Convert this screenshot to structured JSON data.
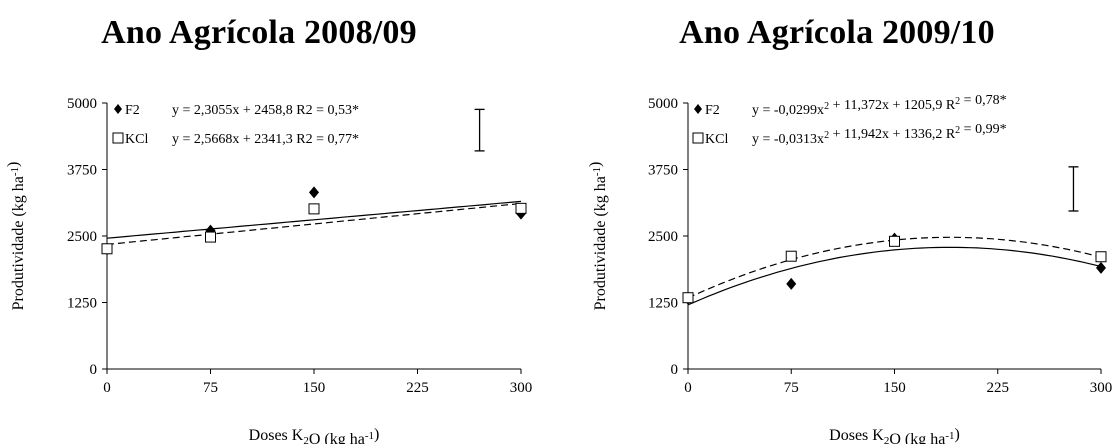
{
  "chart_data": [
    {
      "type": "scatter",
      "title": "Ano Agrícola 2008/09",
      "xlabel": "Doses K₂O (kg ha⁻¹)",
      "ylabel": "Produtividade (kg ha⁻¹)",
      "xlim": [
        0,
        300
      ],
      "ylim": [
        0,
        5000
      ],
      "xticks": [
        "0",
        "75",
        "150",
        "225",
        "300"
      ],
      "yticks": [
        "0",
        "1250",
        "2500",
        "3750",
        "5000"
      ],
      "grid": false,
      "legend_position": "top-left",
      "series": [
        {
          "name": "F2",
          "marker": "diamond",
          "equation": "y = 2,3055x + 2458,8 R2 = 0,53*",
          "fit": {
            "kind": "linear",
            "coef": [
              2458.8,
              2.3055
            ],
            "dash": "solid"
          },
          "x": [
            0,
            75,
            150,
            300
          ],
          "y": [
            2250,
            2600,
            3320,
            2920
          ]
        },
        {
          "name": "KCl",
          "marker": "square",
          "equation": "y = 2,5668x + 2341,3 R2 = 0,77*",
          "fit": {
            "kind": "linear",
            "coef": [
              2341.3,
              2.5668
            ],
            "dash": "dashed"
          },
          "x": [
            0,
            75,
            150,
            300
          ],
          "y": [
            2260,
            2480,
            3010,
            3020
          ]
        }
      ],
      "error_bar": {
        "x": 270,
        "low": 4100,
        "high": 4880
      }
    },
    {
      "type": "scatter",
      "title": "Ano Agrícola 2009/10",
      "xlabel": "Doses K₂O (kg ha⁻¹)",
      "ylabel": "Produtividade (kg ha⁻¹)",
      "xlim": [
        0,
        300
      ],
      "ylim": [
        0,
        5000
      ],
      "xticks": [
        "0",
        "75",
        "150",
        "225",
        "300"
      ],
      "yticks": [
        "0",
        "1250",
        "2500",
        "3750",
        "5000"
      ],
      "grid": false,
      "legend_position": "top-left",
      "series": [
        {
          "name": "F2",
          "marker": "diamond",
          "equation": "y = -0,0299x² + 11,372x + 1205,9 R² = 0,78*",
          "fit": {
            "kind": "quadratic",
            "coef": [
              1205.9,
              11.372,
              -0.0299
            ],
            "dash": "solid"
          },
          "x": [
            0,
            75,
            150,
            300
          ],
          "y": [
            1320,
            1600,
            2450,
            1900
          ]
        },
        {
          "name": "KCl",
          "marker": "square",
          "equation": "y = -0,0313x² + 11,942x + 1336,2 R² = 0,99*",
          "fit": {
            "kind": "quadratic",
            "coef": [
              1336.2,
              11.942,
              -0.0313
            ],
            "dash": "dashed"
          },
          "x": [
            0,
            75,
            150,
            300
          ],
          "y": [
            1340,
            2120,
            2400,
            2110
          ]
        }
      ],
      "error_bar": {
        "x": 280,
        "low": 2970,
        "high": 3800
      }
    }
  ]
}
